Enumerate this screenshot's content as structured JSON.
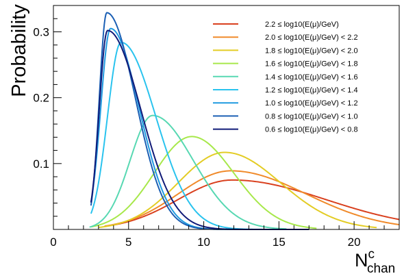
{
  "chart_data": {
    "type": "line",
    "title": "",
    "xlabel_main": "N",
    "xlabel_sup": "c",
    "xlabel_sub": "chan",
    "ylabel": "Probability",
    "xlim": [
      0,
      23
    ],
    "ylim": [
      0,
      0.34
    ],
    "grid": false,
    "legend_position": "top-right",
    "x_ticks": [
      0,
      5,
      10,
      15,
      20
    ],
    "y_ticks": [
      0.1,
      0.2,
      0.3
    ],
    "x_tick_labels": [
      "0",
      "5",
      "10",
      "15",
      "20"
    ],
    "y_tick_labels": [
      "0.1",
      "0.2",
      "0.3"
    ],
    "series": [
      {
        "name": "2.2 ≤ log10(E(μ)/GeV)",
        "color": "#d9401e",
        "x_start": 3.4,
        "x_end": 23,
        "peak_x": 11.9,
        "peak_y": 0.075,
        "width_left": 3.6,
        "width_right": 6.2
      },
      {
        "name": "2.0 ≤ log10(E(μ)/GeV) < 2.2",
        "color": "#f08a2a",
        "x_start": 3.4,
        "x_end": 23,
        "peak_x": 11.8,
        "peak_y": 0.089,
        "width_left": 3.5,
        "width_right": 5.0
      },
      {
        "name": "1.8 ≤ log10(E(μ)/GeV) < 2.0",
        "color": "#e3cc24",
        "x_start": 3.0,
        "x_end": 21.5,
        "peak_x": 11.4,
        "peak_y": 0.117,
        "width_left": 3.1,
        "width_right": 3.7
      },
      {
        "name": "1.6 ≤ log10(E(μ)/GeV) < 1.8",
        "color": "#a7e84a",
        "x_start": 2.5,
        "x_end": 17.5,
        "peak_x": 9.2,
        "peak_y": 0.141,
        "width_left": 2.5,
        "width_right": 2.8
      },
      {
        "name": "1.4 ≤ log10(E(μ)/GeV) < 1.6",
        "color": "#57d8b2",
        "x_start": 2.4,
        "x_end": 15.5,
        "peak_x": 6.6,
        "peak_y": 0.173,
        "width_left": 1.5,
        "width_right": 2.7
      },
      {
        "name": "1.2 ≤ log10(E(μ)/GeV) < 1.4",
        "color": "#29c3ee",
        "x_start": 2.5,
        "x_end": 16.5,
        "peak_x": 4.5,
        "peak_y": 0.284,
        "width_left": 0.9,
        "width_right": 2.3
      },
      {
        "name": "1.0 ≤ log10(E(μ)/GeV) < 1.2",
        "color": "#1f9ae0",
        "x_start": 2.5,
        "x_end": 15.0,
        "peak_x": 3.8,
        "peak_y": 0.305,
        "width_left": 0.65,
        "width_right": 1.9
      },
      {
        "name": "0.8 ≤ log10(E(μ)/GeV) < 1.0",
        "color": "#1b5fb4",
        "x_start": 2.5,
        "x_end": 15.0,
        "peak_x": 3.55,
        "peak_y": 0.329,
        "width_left": 0.5,
        "width_right": 1.9
      },
      {
        "name": "0.6 ≤ log10(E(μ)/GeV) < 0.8",
        "color": "#101a78",
        "x_start": 2.5,
        "x_end": 17.0,
        "peak_x": 3.6,
        "peak_y": 0.302,
        "width_left": 0.55,
        "width_right": 2.2
      }
    ]
  }
}
